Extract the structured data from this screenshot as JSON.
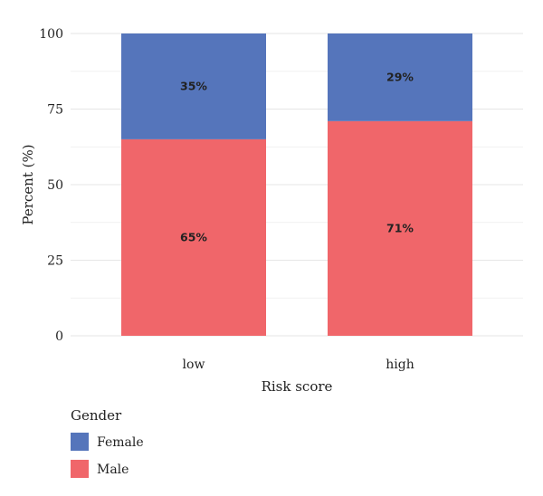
{
  "chart_data": {
    "type": "bar",
    "stacked": true,
    "categories": [
      "low",
      "high"
    ],
    "series": [
      {
        "name": "Male",
        "color": "#f0666a",
        "values": [
          65,
          71
        ],
        "labels": [
          "65%",
          "71%"
        ]
      },
      {
        "name": "Female",
        "color": "#5575bb",
        "values": [
          35,
          29
        ],
        "labels": [
          "35%",
          "29%"
        ]
      }
    ],
    "xlabel": "Risk score",
    "ylabel": "Percent (%)",
    "ylim": [
      0,
      100
    ],
    "yticks": [
      "0",
      "25",
      "50",
      "75",
      "100"
    ],
    "grid": true,
    "legend": {
      "title": "Gender",
      "position": "bottom-left",
      "entries": [
        {
          "label": "Female",
          "color": "#5575bb"
        },
        {
          "label": "Male",
          "color": "#f0666a"
        }
      ]
    }
  }
}
